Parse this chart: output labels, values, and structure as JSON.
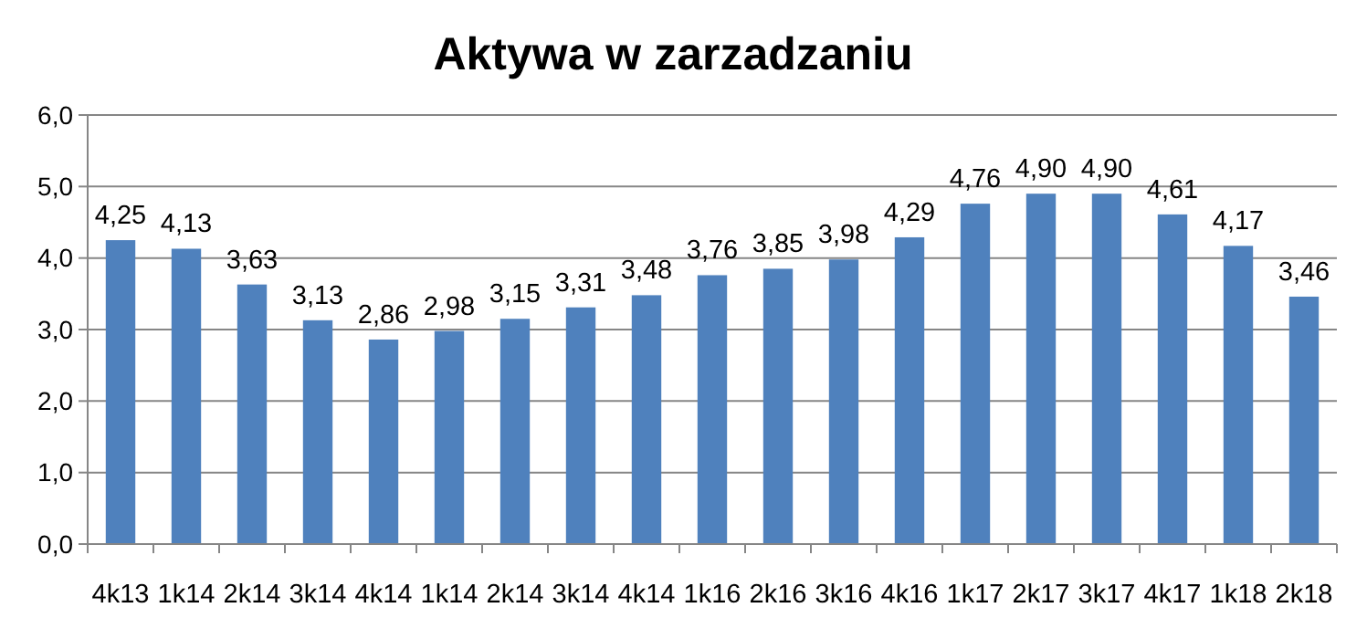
{
  "chart_data": {
    "type": "bar",
    "title": "Aktywa w zarzadzaniu",
    "categories": [
      "4k13",
      "1k14",
      "2k14",
      "3k14",
      "4k14",
      "1k14",
      "2k14",
      "3k14",
      "4k14",
      "1k16",
      "2k16",
      "3k16",
      "4k16",
      "1k17",
      "2k17",
      "3k17",
      "4k17",
      "1k18",
      "2k18"
    ],
    "values": [
      4.25,
      4.13,
      3.63,
      3.13,
      2.86,
      2.98,
      3.15,
      3.31,
      3.48,
      3.76,
      3.85,
      3.98,
      4.29,
      4.76,
      4.9,
      4.9,
      4.61,
      4.17,
      3.46
    ],
    "value_labels": [
      "4,25",
      "4,13",
      "3,63",
      "3,13",
      "2,86",
      "2,98",
      "3,15",
      "3,31",
      "3,48",
      "3,76",
      "3,85",
      "3,98",
      "4,29",
      "4,76",
      "4,90",
      "4,90",
      "4,61",
      "4,17",
      "3,46"
    ],
    "color": "#4f81bd",
    "ylim": [
      0,
      6
    ],
    "yticks": [
      {
        "value": 0,
        "label": "0,0"
      },
      {
        "value": 1,
        "label": "1,0"
      },
      {
        "value": 2,
        "label": "2,0"
      },
      {
        "value": 3,
        "label": "3,0"
      },
      {
        "value": 4,
        "label": "4,0"
      },
      {
        "value": 5,
        "label": "5,0"
      },
      {
        "value": 6,
        "label": "6,0"
      }
    ],
    "grid": "y"
  }
}
